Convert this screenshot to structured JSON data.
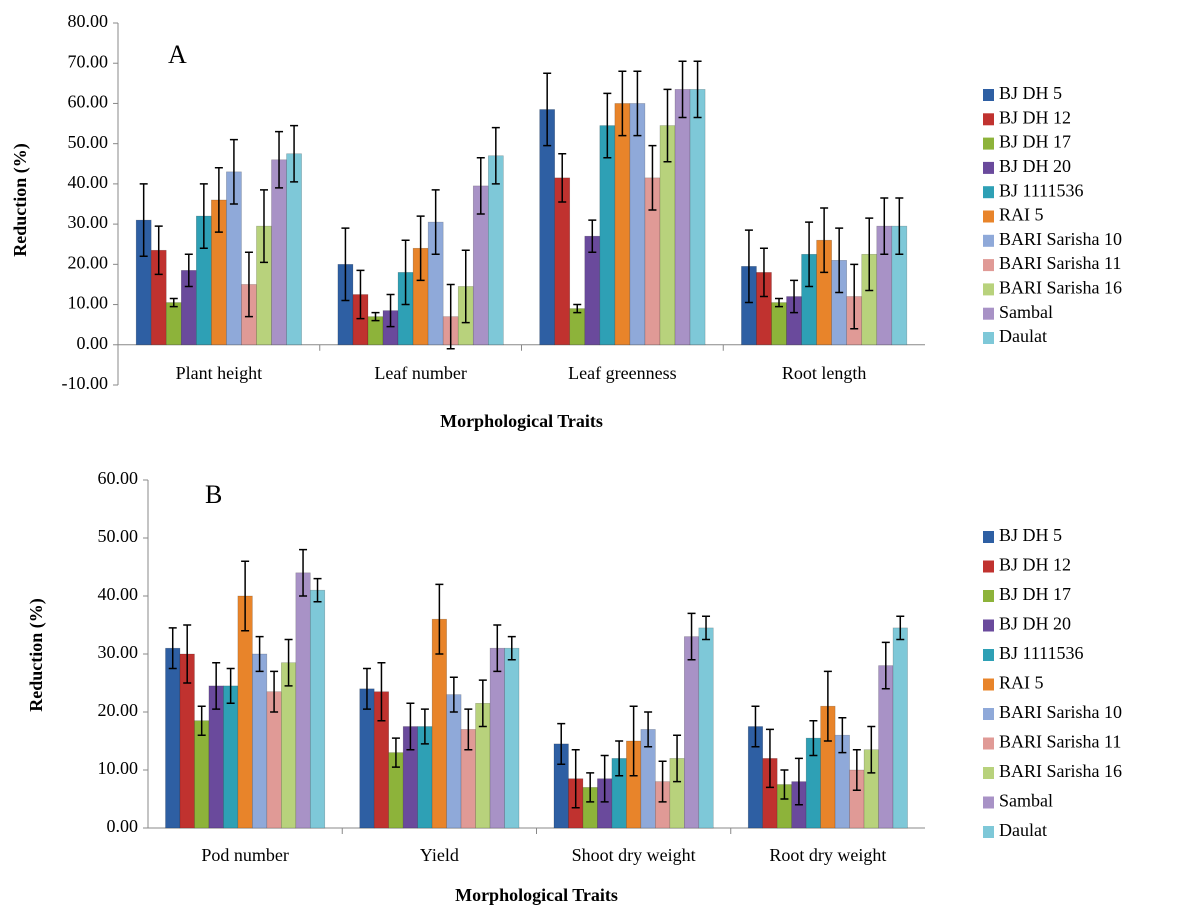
{
  "chart_data": [
    {
      "type": "bar",
      "panel_label": "A",
      "x_label": "Morphological Traits",
      "y_label": "Reduction (%)",
      "categories": [
        "Plant height",
        "Leaf number",
        "Leaf greenness",
        "Root length"
      ],
      "ylim": [
        -10,
        80
      ],
      "yticks": [
        {
          "value": -10,
          "label": "-10.00"
        },
        {
          "value": 0,
          "label": "0.00"
        },
        {
          "value": 10,
          "label": "10.00"
        },
        {
          "value": 20,
          "label": "20.00"
        },
        {
          "value": 30,
          "label": "30.00"
        },
        {
          "value": 40,
          "label": "40.00"
        },
        {
          "value": 50,
          "label": "50.00"
        },
        {
          "value": 60,
          "label": "60.00"
        },
        {
          "value": 70,
          "label": "70.00"
        },
        {
          "value": 80,
          "label": "80.00"
        }
      ],
      "series": [
        {
          "name": "BJ DH 5",
          "color": "#2e5fa3",
          "values": [
            31,
            20,
            58.5,
            19.5
          ],
          "errors": [
            9,
            9,
            9,
            9
          ]
        },
        {
          "name": "BJ DH 12",
          "color": "#c0322f",
          "values": [
            23.5,
            12.5,
            41.5,
            18
          ],
          "errors": [
            6,
            6,
            6,
            6
          ]
        },
        {
          "name": "BJ DH 17",
          "color": "#8db33a",
          "values": [
            10.5,
            7,
            9,
            10.5
          ],
          "errors": [
            1,
            1,
            1,
            1
          ]
        },
        {
          "name": "BJ DH 20",
          "color": "#6a4a9c",
          "values": [
            18.5,
            8.5,
            27,
            12
          ],
          "errors": [
            4,
            4,
            4,
            4
          ]
        },
        {
          "name": "BJ 1111536",
          "color": "#2ea0b5",
          "values": [
            32,
            18,
            54.5,
            22.5
          ],
          "errors": [
            8,
            8,
            8,
            8
          ]
        },
        {
          "name": "RAI 5",
          "color": "#e8842a",
          "values": [
            36,
            24,
            60,
            26
          ],
          "errors": [
            8,
            8,
            8,
            8
          ]
        },
        {
          "name": "BARI Sarisha 10",
          "color": "#8fa9d9",
          "values": [
            43,
            30.5,
            60,
            21
          ],
          "errors": [
            8,
            8,
            8,
            8
          ]
        },
        {
          "name": "BARI Sarisha 11",
          "color": "#e09a96",
          "values": [
            15,
            7,
            41.5,
            12
          ],
          "errors": [
            8,
            8,
            8,
            8
          ]
        },
        {
          "name": "BARI Sarisha 16",
          "color": "#b8d27c",
          "values": [
            29.5,
            14.5,
            54.5,
            22.5
          ],
          "errors": [
            9,
            9,
            9,
            9
          ]
        },
        {
          "name": "Sambal",
          "color": "#a892c6",
          "values": [
            46,
            39.5,
            63.5,
            29.5
          ],
          "errors": [
            7,
            7,
            7,
            7
          ]
        },
        {
          "name": "Daulat",
          "color": "#7ec8d8",
          "values": [
            47.5,
            47,
            63.5,
            29.5
          ],
          "errors": [
            7,
            7,
            7,
            7
          ]
        }
      ]
    },
    {
      "type": "bar",
      "panel_label": "B",
      "x_label": "Morphological Traits",
      "y_label": "Reduction (%)",
      "categories": [
        "Pod number",
        "Yield",
        "Shoot dry weight",
        "Root dry weight"
      ],
      "ylim": [
        0,
        60
      ],
      "yticks": [
        {
          "value": 0,
          "label": "0.00"
        },
        {
          "value": 10,
          "label": "10.00"
        },
        {
          "value": 20,
          "label": "20.00"
        },
        {
          "value": 30,
          "label": "30.00"
        },
        {
          "value": 40,
          "label": "40.00"
        },
        {
          "value": 50,
          "label": "50.00"
        },
        {
          "value": 60,
          "label": "60.00"
        }
      ],
      "series": [
        {
          "name": "BJ DH 5",
          "color": "#2e5fa3",
          "values": [
            31,
            24,
            14.5,
            17.5
          ],
          "errors": [
            3.5,
            3.5,
            3.5,
            3.5
          ]
        },
        {
          "name": "BJ DH 12",
          "color": "#c0322f",
          "values": [
            30,
            23.5,
            8.5,
            12
          ],
          "errors": [
            5,
            5,
            5,
            5
          ]
        },
        {
          "name": "BJ DH 17",
          "color": "#8db33a",
          "values": [
            18.5,
            13,
            7,
            7.5
          ],
          "errors": [
            2.5,
            2.5,
            2.5,
            2.5
          ]
        },
        {
          "name": "BJ DH 20",
          "color": "#6a4a9c",
          "values": [
            24.5,
            17.5,
            8.5,
            8
          ],
          "errors": [
            4,
            4,
            4,
            4
          ]
        },
        {
          "name": "BJ 1111536",
          "color": "#2ea0b5",
          "values": [
            24.5,
            17.5,
            12,
            15.5
          ],
          "errors": [
            3,
            3,
            3,
            3
          ]
        },
        {
          "name": "RAI 5",
          "color": "#e8842a",
          "values": [
            40,
            36,
            15,
            21
          ],
          "errors": [
            6,
            6,
            6,
            6
          ]
        },
        {
          "name": "BARI Sarisha 10",
          "color": "#8fa9d9",
          "values": [
            30,
            23,
            17,
            16
          ],
          "errors": [
            3,
            3,
            3,
            3
          ]
        },
        {
          "name": "BARI Sarisha 11",
          "color": "#e09a96",
          "values": [
            23.5,
            17,
            8,
            10
          ],
          "errors": [
            3.5,
            3.5,
            3.5,
            3.5
          ]
        },
        {
          "name": "BARI Sarisha 16",
          "color": "#b8d27c",
          "values": [
            28.5,
            21.5,
            12,
            13.5
          ],
          "errors": [
            4,
            4,
            4,
            4
          ]
        },
        {
          "name": "Sambal",
          "color": "#a892c6",
          "values": [
            44,
            31,
            33,
            28
          ],
          "errors": [
            4,
            4,
            4,
            4
          ]
        },
        {
          "name": "Daulat",
          "color": "#7ec8d8",
          "values": [
            41,
            31,
            34.5,
            34.5
          ],
          "errors": [
            2,
            2,
            2,
            2
          ]
        }
      ]
    }
  ]
}
